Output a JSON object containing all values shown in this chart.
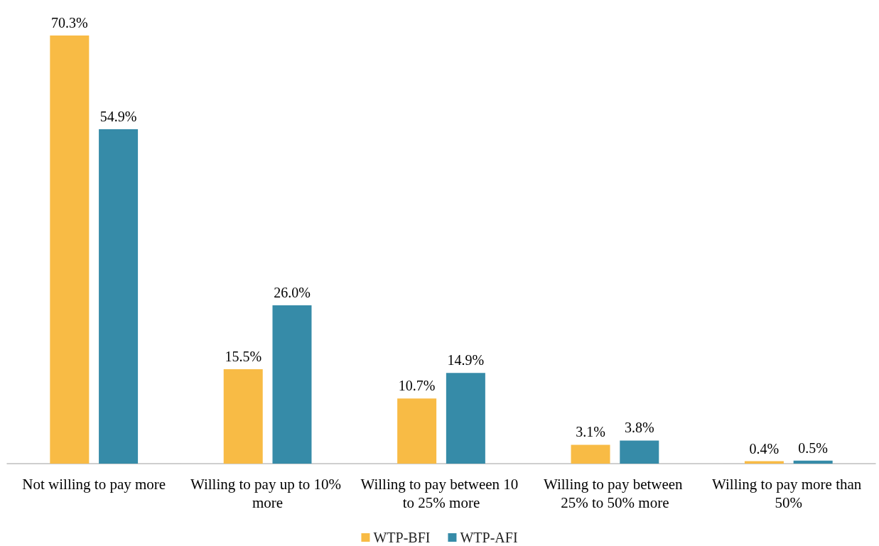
{
  "chart_data": {
    "type": "bar",
    "categories": [
      "Not willing to pay more",
      "Willing to pay up to 10% more",
      "Willing to pay between 10 to 25% more",
      "Willing to pay between 25% to 50% more",
      "Willing to pay more than 50%"
    ],
    "series": [
      {
        "name": "WTP-BFI",
        "color": "#f8bb45",
        "values": [
          70.3,
          15.5,
          10.7,
          3.1,
          0.4
        ],
        "value_labels": [
          "70.3%",
          "15.5%",
          "10.7%",
          "3.1%",
          "0.4%"
        ]
      },
      {
        "name": "WTP-AFI",
        "color": "#368ba8",
        "values": [
          54.9,
          26.0,
          14.9,
          3.8,
          0.5
        ],
        "value_labels": [
          "54.9%",
          "26.0%",
          "14.9%",
          "3.8%",
          "0.5%"
        ]
      }
    ],
    "legend": "bottom"
  }
}
